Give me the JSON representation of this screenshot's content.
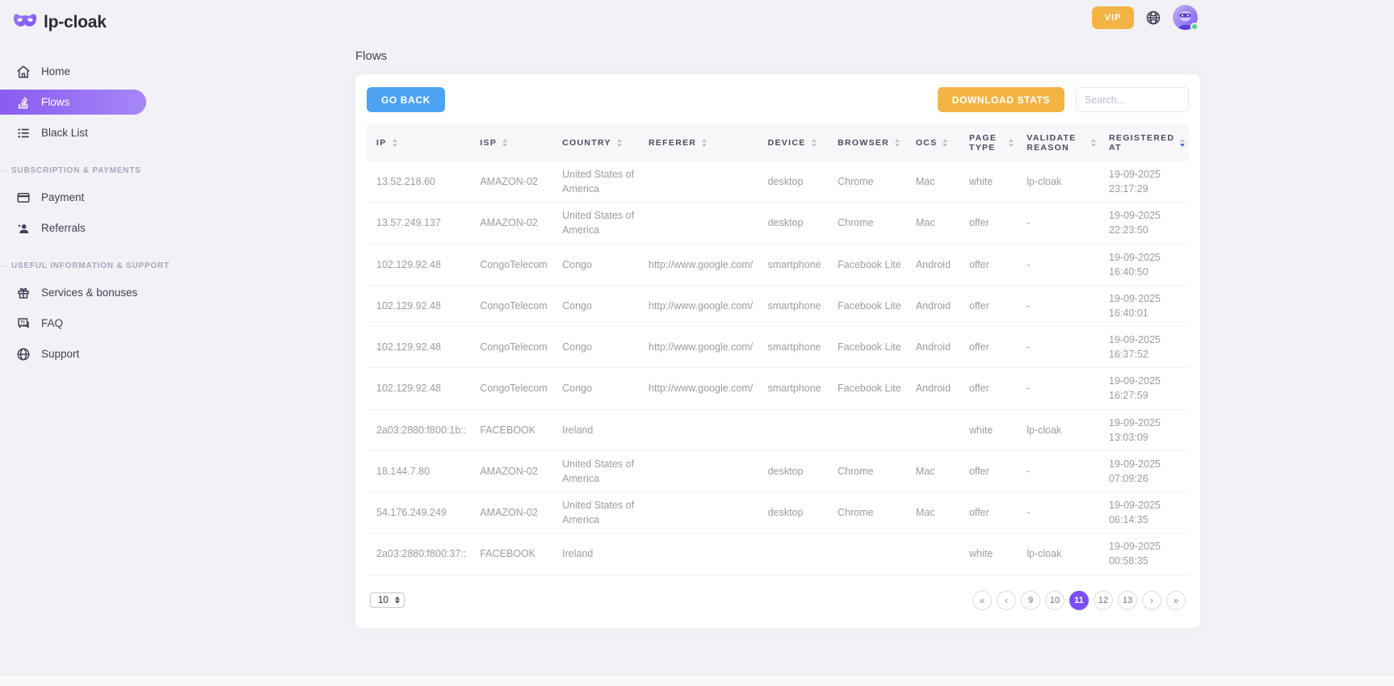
{
  "brand": {
    "name": "lp-cloak",
    "logo_icon": "mask-icon"
  },
  "topbar": {
    "vip_label": "VIP",
    "icons": [
      "globe-icon",
      "avatar"
    ],
    "status": "online"
  },
  "sidebar": {
    "primary": [
      {
        "label": "Home",
        "icon": "home-icon",
        "active": false
      },
      {
        "label": "Flows",
        "icon": "flows-icon",
        "active": true
      },
      {
        "label": "Black List",
        "icon": "list-icon",
        "active": false
      }
    ],
    "sections": [
      {
        "heading": "SUBSCRIPTION & PAYMENTS",
        "items": [
          {
            "label": "Payment",
            "icon": "credit-card-icon"
          },
          {
            "label": "Referrals",
            "icon": "user-plus-icon"
          }
        ]
      },
      {
        "heading": "USEFUL INFORMATION & SUPPORT",
        "items": [
          {
            "label": "Services & bonuses",
            "icon": "gift-icon"
          },
          {
            "label": "FAQ",
            "icon": "chat-question-icon"
          },
          {
            "label": "Support",
            "icon": "globe-icon"
          }
        ]
      }
    ]
  },
  "page": {
    "title": "Flows"
  },
  "toolbar": {
    "go_back_label": "GO BACK",
    "download_stats_label": "DOWNLOAD STATS",
    "search_placeholder": "Search..."
  },
  "table": {
    "columns": [
      "IP",
      "ISP",
      "COUNTRY",
      "REFERER",
      "DEVICE",
      "BROWSER",
      "OCS",
      "PAGE TYPE",
      "VALIDATE REASON",
      "REGISTERED AT"
    ],
    "sorted_column": "REGISTERED AT",
    "sort_direction": "desc",
    "rows": [
      {
        "ip": "13.52.218.60",
        "isp": "AMAZON-02",
        "country": "United States of America",
        "referer": "",
        "device": "desktop",
        "browser": "Chrome",
        "ocs": "Mac",
        "page_type": "white",
        "validate_reason": "lp-cloak",
        "registered_date": "19-09-2025",
        "registered_time": "23:17:29"
      },
      {
        "ip": "13.57.249.137",
        "isp": "AMAZON-02",
        "country": "United States of America",
        "referer": "",
        "device": "desktop",
        "browser": "Chrome",
        "ocs": "Mac",
        "page_type": "offer",
        "validate_reason": "-",
        "registered_date": "19-09-2025",
        "registered_time": "22:23:50"
      },
      {
        "ip": "102.129.92.48",
        "isp": "CongoTelecom",
        "country": "Congo",
        "referer": "http://www.google.com/",
        "device": "smartphone",
        "browser": "Facebook Lite",
        "ocs": "Android",
        "page_type": "offer",
        "validate_reason": "-",
        "registered_date": "19-09-2025",
        "registered_time": "16:40:50"
      },
      {
        "ip": "102.129.92.48",
        "isp": "CongoTelecom",
        "country": "Congo",
        "referer": "http://www.google.com/",
        "device": "smartphone",
        "browser": "Facebook Lite",
        "ocs": "Android",
        "page_type": "offer",
        "validate_reason": "-",
        "registered_date": "19-09-2025",
        "registered_time": "16:40:01"
      },
      {
        "ip": "102.129.92.48",
        "isp": "CongoTelecom",
        "country": "Congo",
        "referer": "http://www.google.com/",
        "device": "smartphone",
        "browser": "Facebook Lite",
        "ocs": "Android",
        "page_type": "offer",
        "validate_reason": "-",
        "registered_date": "19-09-2025",
        "registered_time": "16:37:52"
      },
      {
        "ip": "102.129.92.48",
        "isp": "CongoTelecom",
        "country": "Congo",
        "referer": "http://www.google.com/",
        "device": "smartphone",
        "browser": "Facebook Lite",
        "ocs": "Android",
        "page_type": "offer",
        "validate_reason": "-",
        "registered_date": "19-09-2025",
        "registered_time": "16:27:59"
      },
      {
        "ip": "2a03:2880:f800:1b::",
        "isp": "FACEBOOK",
        "country": "Ireland",
        "referer": "",
        "device": "",
        "browser": "",
        "ocs": "",
        "page_type": "white",
        "validate_reason": "lp-cloak",
        "registered_date": "19-09-2025",
        "registered_time": "13:03:09"
      },
      {
        "ip": "18.144.7.80",
        "isp": "AMAZON-02",
        "country": "United States of America",
        "referer": "",
        "device": "desktop",
        "browser": "Chrome",
        "ocs": "Mac",
        "page_type": "offer",
        "validate_reason": "-",
        "registered_date": "19-09-2025",
        "registered_time": "07:09:26"
      },
      {
        "ip": "54.176.249.249",
        "isp": "AMAZON-02",
        "country": "United States of America",
        "referer": "",
        "device": "desktop",
        "browser": "Chrome",
        "ocs": "Mac",
        "page_type": "offer",
        "validate_reason": "-",
        "registered_date": "19-09-2025",
        "registered_time": "06:14:35"
      },
      {
        "ip": "2a03:2880:f800:37::",
        "isp": "FACEBOOK",
        "country": "Ireland",
        "referer": "",
        "device": "",
        "browser": "",
        "ocs": "",
        "page_type": "white",
        "validate_reason": "lp-cloak",
        "registered_date": "19-09-2025",
        "registered_time": "00:58:35"
      }
    ]
  },
  "pagination": {
    "page_size": "10",
    "first_label": "«",
    "prev_label": "‹",
    "pages": [
      "9",
      "10",
      "11",
      "12",
      "13"
    ],
    "active_page": "11",
    "next_label": "›",
    "last_label": "»"
  },
  "colors": {
    "background": "#f1f1f6",
    "accent_gradient_start": "#8a5cf0",
    "accent_gradient_end": "#a687f7",
    "blue_button": "#4da3f1",
    "amber_button": "#f2b544",
    "active_page_bg": "#7c4ef3",
    "active_sort_caret": "#3d64f4",
    "online_green": "#50cd89"
  }
}
